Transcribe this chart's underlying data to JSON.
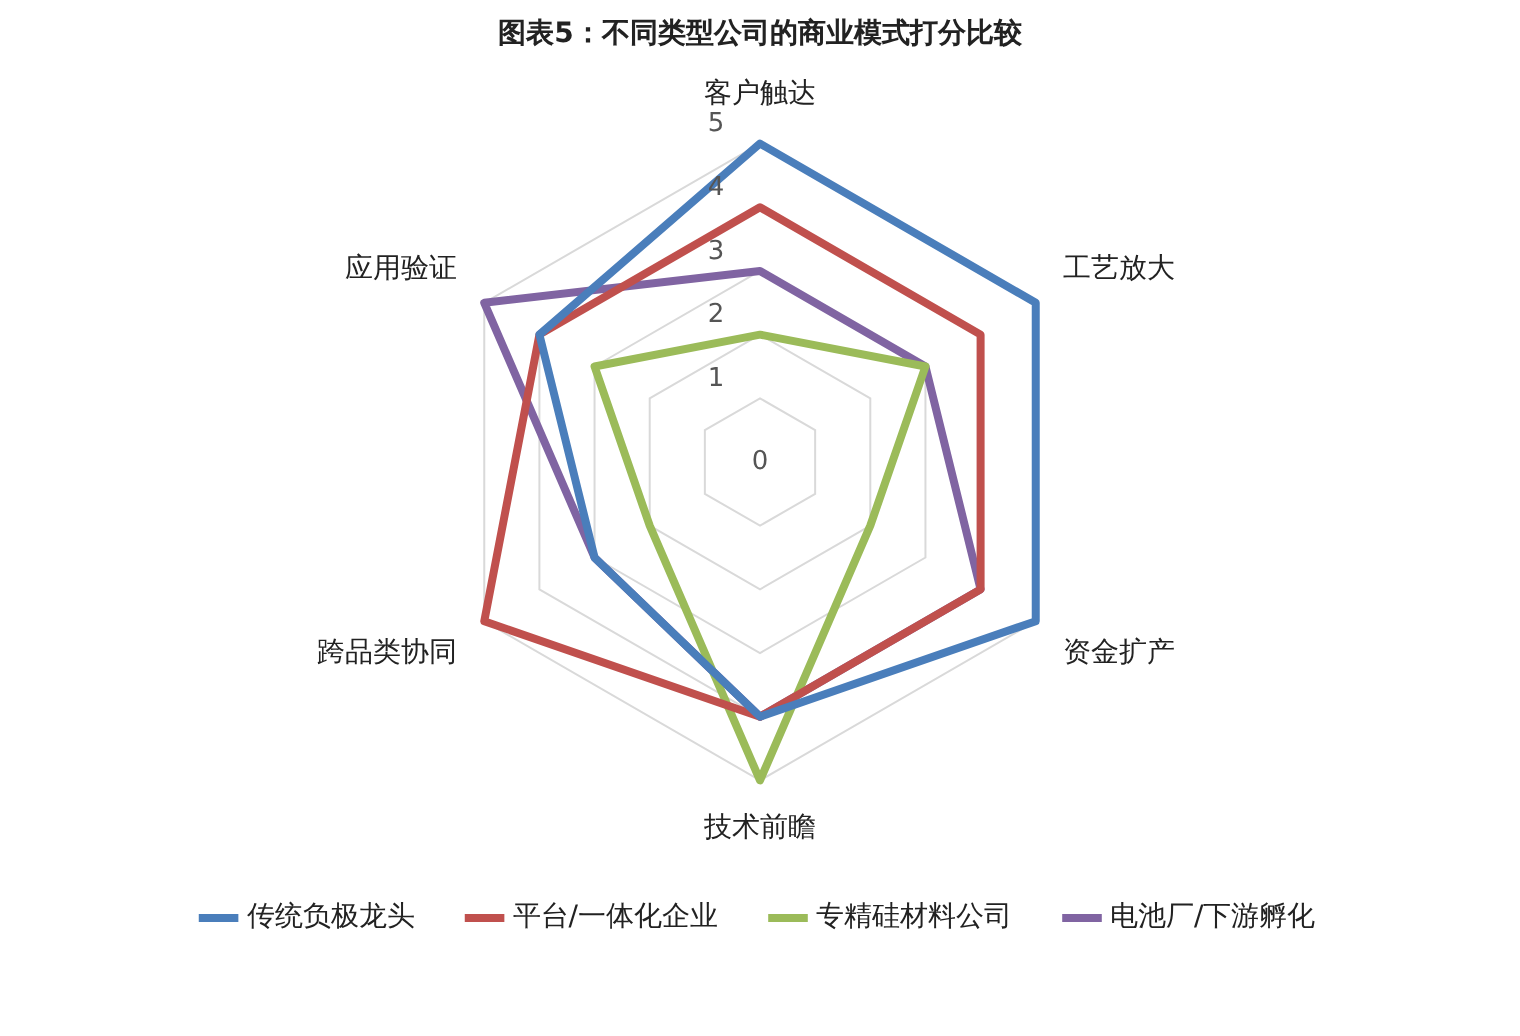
{
  "chart_data": {
    "type": "radar",
    "title": "图表5：不同类型公司的商业模式打分比较",
    "categories": [
      "客户触达",
      "工艺放大",
      "资金扩产",
      "技术前瞻",
      "跨品类协同",
      "应用验证"
    ],
    "series": [
      {
        "name": "传统负极龙头",
        "color": "#4a7ebb",
        "values": [
          5,
          5,
          5,
          4,
          3,
          4
        ]
      },
      {
        "name": "平台/一体化企业",
        "color": "#c0504d",
        "values": [
          4,
          4,
          4,
          4,
          5,
          4
        ]
      },
      {
        "name": "专精硅材料公司",
        "color": "#9bbb59",
        "values": [
          2,
          3,
          2,
          5,
          2,
          3
        ]
      },
      {
        "name": "电池厂/下游孵化",
        "color": "#8064a2",
        "values": [
          3,
          3,
          4,
          4,
          3,
          5
        ]
      }
    ],
    "ylim": [
      0,
      5
    ],
    "yticks": [
      0,
      1,
      2,
      3,
      4,
      5
    ],
    "grid": true,
    "legend": "bottom",
    "marker": "none",
    "line_style": "solid"
  }
}
